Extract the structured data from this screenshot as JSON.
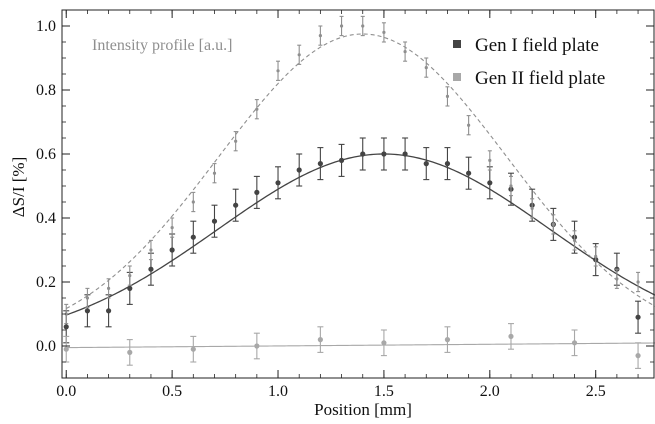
{
  "chart_data": {
    "type": "scatter",
    "title": "",
    "xlabel": "Position [mm]",
    "ylabel": "ΔS/I [%]",
    "xlim": [
      -0.02,
      2.78
    ],
    "ylim": [
      -0.1,
      1.05
    ],
    "x_ticks": [
      "0.0",
      "0.5",
      "1.0",
      "1.5",
      "2.0",
      "2.5"
    ],
    "x_tick_values": [
      0,
      0.5,
      1.0,
      1.5,
      2.0,
      2.5
    ],
    "y_ticks": [
      "0.0",
      "0.2",
      "0.4",
      "0.6",
      "0.8",
      "1.0"
    ],
    "y_tick_values": [
      0,
      0.2,
      0.4,
      0.6,
      0.8,
      1.0
    ],
    "grid": false,
    "legend_position": "top-right",
    "annotation": "Intensity profile [a.u.]",
    "series": [
      {
        "name": "Gen I field plate",
        "color": "#444444",
        "marker": "square",
        "x": [
          0.0,
          0.1,
          0.2,
          0.3,
          0.4,
          0.5,
          0.6,
          0.7,
          0.8,
          0.9,
          1.0,
          1.1,
          1.2,
          1.3,
          1.4,
          1.5,
          1.6,
          1.7,
          1.8,
          1.9,
          2.0,
          2.1,
          2.2,
          2.3,
          2.4,
          2.5,
          2.6,
          2.7
        ],
        "y": [
          0.06,
          0.11,
          0.11,
          0.18,
          0.24,
          0.3,
          0.34,
          0.39,
          0.44,
          0.48,
          0.51,
          0.55,
          0.57,
          0.58,
          0.6,
          0.6,
          0.6,
          0.57,
          0.57,
          0.54,
          0.51,
          0.49,
          0.44,
          0.38,
          0.34,
          0.27,
          0.24,
          0.09
        ],
        "error": 0.05,
        "fit": "gaussian",
        "fit_params": {
          "amplitude": 0.6,
          "center": 1.5,
          "sigma": 0.7856
        }
      },
      {
        "name": "Gen II field plate",
        "color": "#a8a8a8",
        "marker": "square",
        "x": [
          0.0,
          0.3,
          0.6,
          0.9,
          1.2,
          1.5,
          1.8,
          2.1,
          2.4,
          2.7
        ],
        "y": [
          -0.01,
          -0.02,
          -0.01,
          0.0,
          0.02,
          0.01,
          0.02,
          0.03,
          0.01,
          -0.03
        ],
        "error": 0.04,
        "fit": "linear",
        "fit_params": {
          "intercept": -0.005,
          "slope": 0.0052
        }
      },
      {
        "name": "",
        "role": "intensity profile",
        "color": "#8f8f8f",
        "marker": "dot",
        "x": [
          0.0,
          0.1,
          0.2,
          0.3,
          0.4,
          0.5,
          0.6,
          0.7,
          0.8,
          0.9,
          1.0,
          1.1,
          1.2,
          1.3,
          1.4,
          1.5,
          1.6,
          1.7,
          1.8,
          1.9,
          2.0,
          2.1,
          2.2,
          2.3,
          2.4,
          2.5,
          2.6,
          2.7
        ],
        "y": [
          0.1,
          0.15,
          0.18,
          0.22,
          0.3,
          0.37,
          0.45,
          0.54,
          0.64,
          0.74,
          0.86,
          0.91,
          0.97,
          1.0,
          1.0,
          0.98,
          0.92,
          0.87,
          0.78,
          0.69,
          0.58,
          0.5,
          0.43,
          0.38,
          0.33,
          0.28,
          0.21,
          0.2
        ],
        "error": 0.03,
        "fit": "gaussian",
        "fit_style": "dashed",
        "fit_params": {
          "amplitude": 0.975,
          "center": 1.4,
          "sigma": 0.68
        }
      }
    ]
  }
}
